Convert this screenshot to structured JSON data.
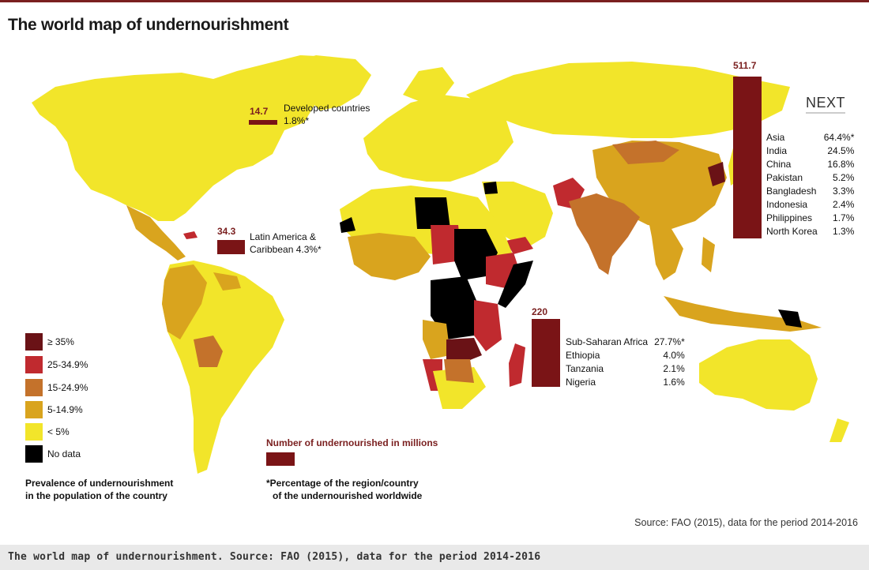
{
  "title": "The world map of undernourishment",
  "nav": {
    "next_label": "NEXT"
  },
  "colors": {
    "lt5": "#f2e52a",
    "c5_15": "#d9a41e",
    "c15_25": "#c4722b",
    "c25_35": "#c02a2f",
    "ge35": "#6a1216",
    "nodata": "#000000",
    "bar": "#7a1416",
    "ocean": "#ffffff"
  },
  "regions": {
    "developed": {
      "value": "14.7",
      "name": "Developed countries",
      "pct": "1.8%*"
    },
    "latam": {
      "value": "34.3",
      "name_line1": "Latin America &",
      "name_line2": "Caribbean  4.3%*"
    },
    "africa": {
      "value": "220",
      "rows": [
        {
          "name": "Sub-Saharan Africa",
          "pct": "27.7%*"
        },
        {
          "name": "Ethiopia",
          "pct": "4.0%"
        },
        {
          "name": "Tanzania",
          "pct": "2.1%"
        },
        {
          "name": "Nigeria",
          "pct": "1.6%"
        }
      ]
    },
    "asia": {
      "value": "511.7",
      "rows": [
        {
          "name": "Asia",
          "pct": "64.4%*"
        },
        {
          "name": "India",
          "pct": "24.5%"
        },
        {
          "name": "China",
          "pct": "16.8%"
        },
        {
          "name": "Pakistan",
          "pct": "5.2%"
        },
        {
          "name": "Bangladesh",
          "pct": "3.3%"
        },
        {
          "name": "Indonesia",
          "pct": "2.4%"
        },
        {
          "name": "Philippines",
          "pct": "1.7%"
        },
        {
          "name": "North Korea",
          "pct": "1.3%"
        }
      ]
    }
  },
  "legend": {
    "items": [
      {
        "label": "≥ 35%",
        "color": "#6a1216"
      },
      {
        "label": "25-34.9%",
        "color": "#c02a2f"
      },
      {
        "label": "15-24.9%",
        "color": "#c4722b"
      },
      {
        "label": "5-14.9%",
        "color": "#d9a41e"
      },
      {
        "label": "< 5%",
        "color": "#f2e52a"
      },
      {
        "label": "No data",
        "color": "#000000"
      }
    ],
    "caption_line1": "Prevalence of undernourishment",
    "caption_line2": "in the population of the country"
  },
  "key": {
    "title": "Number of undernourished in millions",
    "footnote_line1": "*Percentage of the region/country",
    "footnote_line2": "of the undernourished worldwide"
  },
  "source": "Source: FAO (2015), data for the period 2014-2016",
  "caption": "The world map of undernourishment. Source: FAO (2015), data for the period 2014-2016"
}
